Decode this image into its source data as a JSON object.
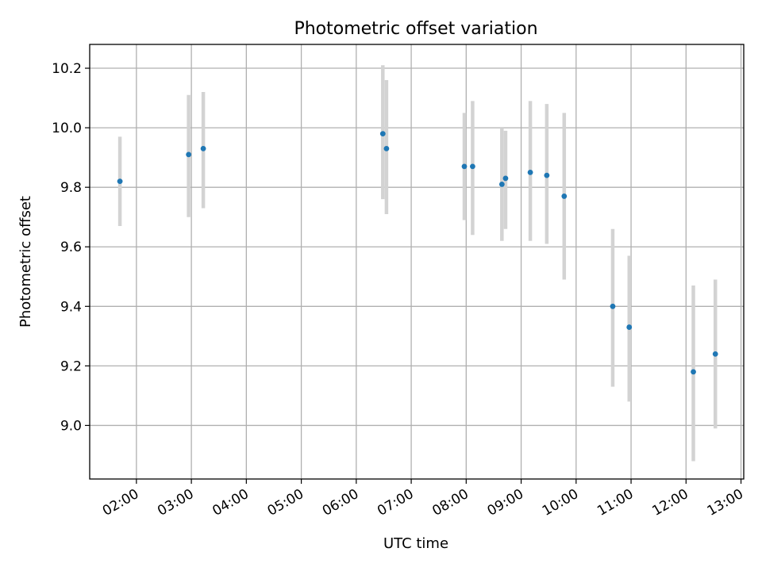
{
  "chart_data": {
    "type": "scatter",
    "title": "Photometric offset variation",
    "xlabel": "UTC time",
    "ylabel": "Photometric offset",
    "x_tick_labels": [
      "02:00",
      "03:00",
      "04:00",
      "05:00",
      "06:00",
      "07:00",
      "08:00",
      "09:00",
      "10:00",
      "11:00",
      "12:00",
      "13:00"
    ],
    "y_ticks": [
      9.0,
      9.2,
      9.4,
      9.6,
      9.8,
      10.0,
      10.2
    ],
    "xlim": [
      "01:09",
      "13:03"
    ],
    "ylim": [
      8.82,
      10.28
    ],
    "grid": true,
    "points": [
      {
        "time": "01:42",
        "offset": 9.82,
        "err_low": 9.67,
        "err_high": 9.97
      },
      {
        "time": "02:57",
        "offset": 9.91,
        "err_low": 9.7,
        "err_high": 10.11
      },
      {
        "time": "03:13",
        "offset": 9.93,
        "err_low": 9.73,
        "err_high": 10.12
      },
      {
        "time": "06:29",
        "offset": 9.98,
        "err_low": 9.76,
        "err_high": 10.21
      },
      {
        "time": "06:33",
        "offset": 9.93,
        "err_low": 9.71,
        "err_high": 10.16
      },
      {
        "time": "07:58",
        "offset": 9.87,
        "err_low": 9.69,
        "err_high": 10.05
      },
      {
        "time": "08:07",
        "offset": 9.87,
        "err_low": 9.64,
        "err_high": 10.09
      },
      {
        "time": "08:39",
        "offset": 9.81,
        "err_low": 9.62,
        "err_high": 10.0
      },
      {
        "time": "08:43",
        "offset": 9.83,
        "err_low": 9.66,
        "err_high": 9.99
      },
      {
        "time": "09:10",
        "offset": 9.85,
        "err_low": 9.62,
        "err_high": 10.09
      },
      {
        "time": "09:28",
        "offset": 9.84,
        "err_low": 9.61,
        "err_high": 10.08
      },
      {
        "time": "09:47",
        "offset": 9.77,
        "err_low": 9.49,
        "err_high": 10.05
      },
      {
        "time": "10:40",
        "offset": 9.4,
        "err_low": 9.13,
        "err_high": 9.66
      },
      {
        "time": "10:58",
        "offset": 9.33,
        "err_low": 9.08,
        "err_high": 9.57
      },
      {
        "time": "12:08",
        "offset": 9.18,
        "err_low": 8.88,
        "err_high": 9.47
      },
      {
        "time": "12:32",
        "offset": 9.24,
        "err_low": 8.99,
        "err_high": 9.49
      }
    ],
    "colors": {
      "point": "#1f77b4",
      "errorbar": "#d3d3d3",
      "grid": "#b0b0b0",
      "axes": "#000000"
    }
  }
}
